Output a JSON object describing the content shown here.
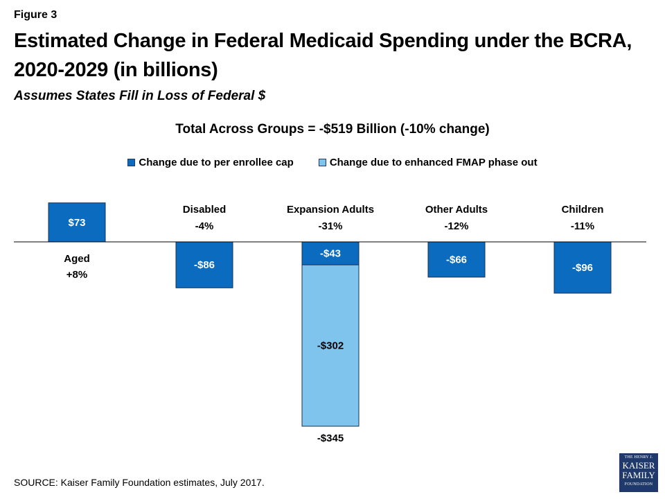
{
  "header": {
    "figure_label": "Figure 3",
    "title": "Estimated Change in Federal Medicaid Spending under the BCRA, 2020-2029 (in billions)",
    "subtitle": "Assumes States Fill in Loss of Federal $"
  },
  "footer": {
    "source": "SOURCE: Kaiser Family Foundation  estimates, July 2017.",
    "logo_lines": [
      "THE HENRY J.",
      "KAISER",
      "FAMILY",
      "FOUNDATION"
    ]
  },
  "chart_data": {
    "type": "bar",
    "stacked": true,
    "title": "Total Across Groups = -$519 Billion (-10% change)",
    "xlabel": "",
    "ylabel": "",
    "categories": [
      "Aged",
      "Disabled",
      "Expansion Adults",
      "Other Adults",
      "Children"
    ],
    "category_pct_labels": [
      "+8%",
      "-4%",
      "-31%",
      "-12%",
      "-11%"
    ],
    "series": [
      {
        "name": "Change due to per enrollee cap",
        "color": "#0a6bbf",
        "values": [
          73,
          -86,
          -43,
          -66,
          -96
        ],
        "labels": [
          "$73",
          "-$86",
          "-$43",
          "-$66",
          "-$96"
        ]
      },
      {
        "name": "Change due to enhanced FMAP phase out",
        "color": "#7fc4ec",
        "values": [
          0,
          0,
          -302,
          0,
          0
        ],
        "labels": [
          "",
          "",
          "-$302",
          "",
          ""
        ]
      }
    ],
    "totals": [
      {
        "category": "Expansion Adults",
        "value": -345,
        "label": "-$345"
      }
    ],
    "ylim": [
      -345,
      73
    ],
    "grid": false,
    "legend_position": "top"
  }
}
